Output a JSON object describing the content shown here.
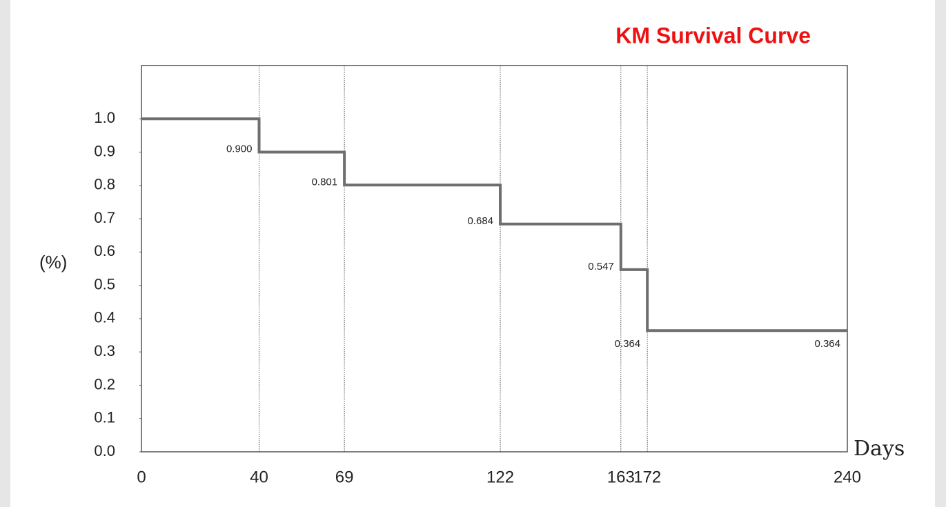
{
  "chart_data": {
    "type": "step",
    "title": "KM Survival Curve",
    "y_label": "(%)",
    "x_label": "Days",
    "x": [
      0,
      40,
      69,
      122,
      163,
      172,
      240
    ],
    "values": [
      1.0,
      0.9,
      0.801,
      0.684,
      0.547,
      0.364,
      0.364
    ],
    "value_labels": [
      null,
      "0.900",
      "0.801",
      "0.684",
      "0.547",
      "0.364",
      "0.364"
    ],
    "color": "#6e6e6e",
    "xlim": [
      0,
      240
    ],
    "xticks": [
      0,
      40,
      69,
      122,
      163,
      172,
      240
    ],
    "ylim": [
      0,
      1.16
    ],
    "yticks": [
      {
        "value": 0,
        "label": "0.0"
      },
      0.1,
      0.2,
      0.3,
      0.4,
      0.5,
      0.6,
      0.7,
      0.8,
      0.9,
      {
        "value": 1,
        "label": "1.0"
      }
    ],
    "grid": true
  }
}
